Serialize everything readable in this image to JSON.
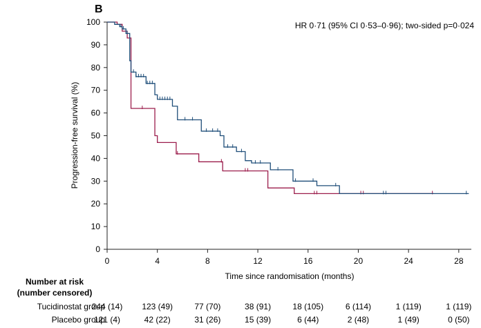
{
  "chart_data": {
    "type": "line",
    "panel_label": "B",
    "annotation": "HR 0·71 (95% CI 0·53–0·96); two-sided p=0·024",
    "xlabel": "Time since randomisation (months)",
    "ylabel": "Progression-free survival (%)",
    "xlim": [
      0,
      29
    ],
    "ylim": [
      0,
      100
    ],
    "x_ticks": [
      "0",
      "4",
      "8",
      "12",
      "16",
      "20",
      "24",
      "28"
    ],
    "y_ticks": [
      "0",
      "10",
      "20",
      "30",
      "40",
      "50",
      "60",
      "70",
      "80",
      "90",
      "100"
    ],
    "grid": false,
    "series": [
      {
        "name": "Tucidinostat group",
        "color": "#1f4e79",
        "points": [
          [
            0,
            100
          ],
          [
            0.6,
            100
          ],
          [
            0.6,
            99
          ],
          [
            1.0,
            99
          ],
          [
            1.0,
            98
          ],
          [
            1.2,
            98
          ],
          [
            1.2,
            97
          ],
          [
            1.5,
            97
          ],
          [
            1.5,
            95
          ],
          [
            1.8,
            95
          ],
          [
            1.8,
            83
          ],
          [
            1.9,
            83
          ],
          [
            1.9,
            78
          ],
          [
            2.3,
            78
          ],
          [
            2.3,
            76
          ],
          [
            3.1,
            76
          ],
          [
            3.1,
            73
          ],
          [
            3.8,
            73
          ],
          [
            3.8,
            68
          ],
          [
            4.0,
            68
          ],
          [
            4.0,
            66
          ],
          [
            5.2,
            66
          ],
          [
            5.2,
            63
          ],
          [
            5.6,
            63
          ],
          [
            5.6,
            57
          ],
          [
            7.5,
            57
          ],
          [
            7.5,
            52
          ],
          [
            9.0,
            52
          ],
          [
            9.0,
            50
          ],
          [
            9.3,
            50
          ],
          [
            9.3,
            45
          ],
          [
            10.3,
            45
          ],
          [
            10.3,
            43
          ],
          [
            11.0,
            43
          ],
          [
            11.0,
            39
          ],
          [
            11.5,
            39
          ],
          [
            11.5,
            38
          ],
          [
            13.0,
            38
          ],
          [
            13.0,
            35
          ],
          [
            14.8,
            35
          ],
          [
            14.8,
            30
          ],
          [
            16.7,
            30
          ],
          [
            16.7,
            28
          ],
          [
            18.5,
            28
          ],
          [
            18.5,
            24.5
          ],
          [
            28.8,
            24.5
          ]
        ],
        "censor_times": [
          1.1,
          1.3,
          1.6,
          2.1,
          2.3,
          2.5,
          2.7,
          2.9,
          3.2,
          3.4,
          3.6,
          4.2,
          4.4,
          4.6,
          4.8,
          5.0,
          6.2,
          6.8,
          7.9,
          8.4,
          8.8,
          9.6,
          10.0,
          10.7,
          11.8,
          12.2,
          13.6,
          15.0,
          16.4,
          18.2,
          22.0,
          22.2,
          28.6
        ]
      },
      {
        "name": "Placebo group",
        "color": "#9b1c4b",
        "points": [
          [
            0,
            100
          ],
          [
            0.8,
            100
          ],
          [
            0.8,
            99
          ],
          [
            1.2,
            99
          ],
          [
            1.2,
            96
          ],
          [
            1.6,
            96
          ],
          [
            1.6,
            93
          ],
          [
            1.9,
            93
          ],
          [
            1.9,
            62
          ],
          [
            3.8,
            62
          ],
          [
            3.8,
            50
          ],
          [
            4.0,
            50
          ],
          [
            4.0,
            47
          ],
          [
            5.5,
            47
          ],
          [
            5.5,
            42
          ],
          [
            7.3,
            42
          ],
          [
            7.3,
            38.5
          ],
          [
            9.2,
            38.5
          ],
          [
            9.2,
            34.5
          ],
          [
            12.8,
            34.5
          ],
          [
            12.8,
            27
          ],
          [
            14.9,
            27
          ],
          [
            14.9,
            24.5
          ],
          [
            26.0,
            24.5
          ]
        ],
        "censor_times": [
          2.8,
          5.6,
          9.1,
          11.0,
          11.2,
          16.5,
          16.7,
          20.2,
          20.4,
          25.9
        ]
      }
    ]
  },
  "risk_table": {
    "header": [
      "Number at risk",
      "(number censored)"
    ],
    "rows": [
      {
        "label": "Tucidinostat group",
        "cells": [
          "244 (14)",
          "123 (49)",
          "77 (70)",
          "38 (91)",
          "18 (105)",
          "6 (114)",
          "1 (119)",
          "1 (119)"
        ]
      },
      {
        "label": "Placebo group",
        "cells": [
          "121 (4)",
          "42 (22)",
          "31 (26)",
          "15 (39)",
          "6 (44)",
          "2 (48)",
          "1 (49)",
          "0 (50)"
        ]
      }
    ]
  }
}
